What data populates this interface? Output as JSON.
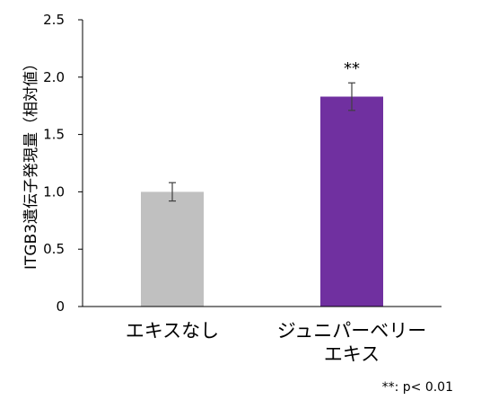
{
  "chart_data": {
    "type": "bar",
    "categories": [
      "エキスなし",
      "ジュニパーベリー\nエキス"
    ],
    "values": [
      1.0,
      1.83
    ],
    "error": [
      0.08,
      0.12
    ],
    "bar_colors": [
      "#c0c0c0",
      "#7030a0"
    ],
    "ylabel": "ITGB3遺伝子発現量（相対値）",
    "ylim": [
      0,
      2.5
    ],
    "yticks": [
      "0",
      "0.5",
      "1.0",
      "1.5",
      "2.0",
      "2.5"
    ],
    "annotations": [
      {
        "category_index": 1,
        "text": "**"
      }
    ],
    "footnote": "**: p< 0.01",
    "grid": false,
    "legend": "none"
  }
}
